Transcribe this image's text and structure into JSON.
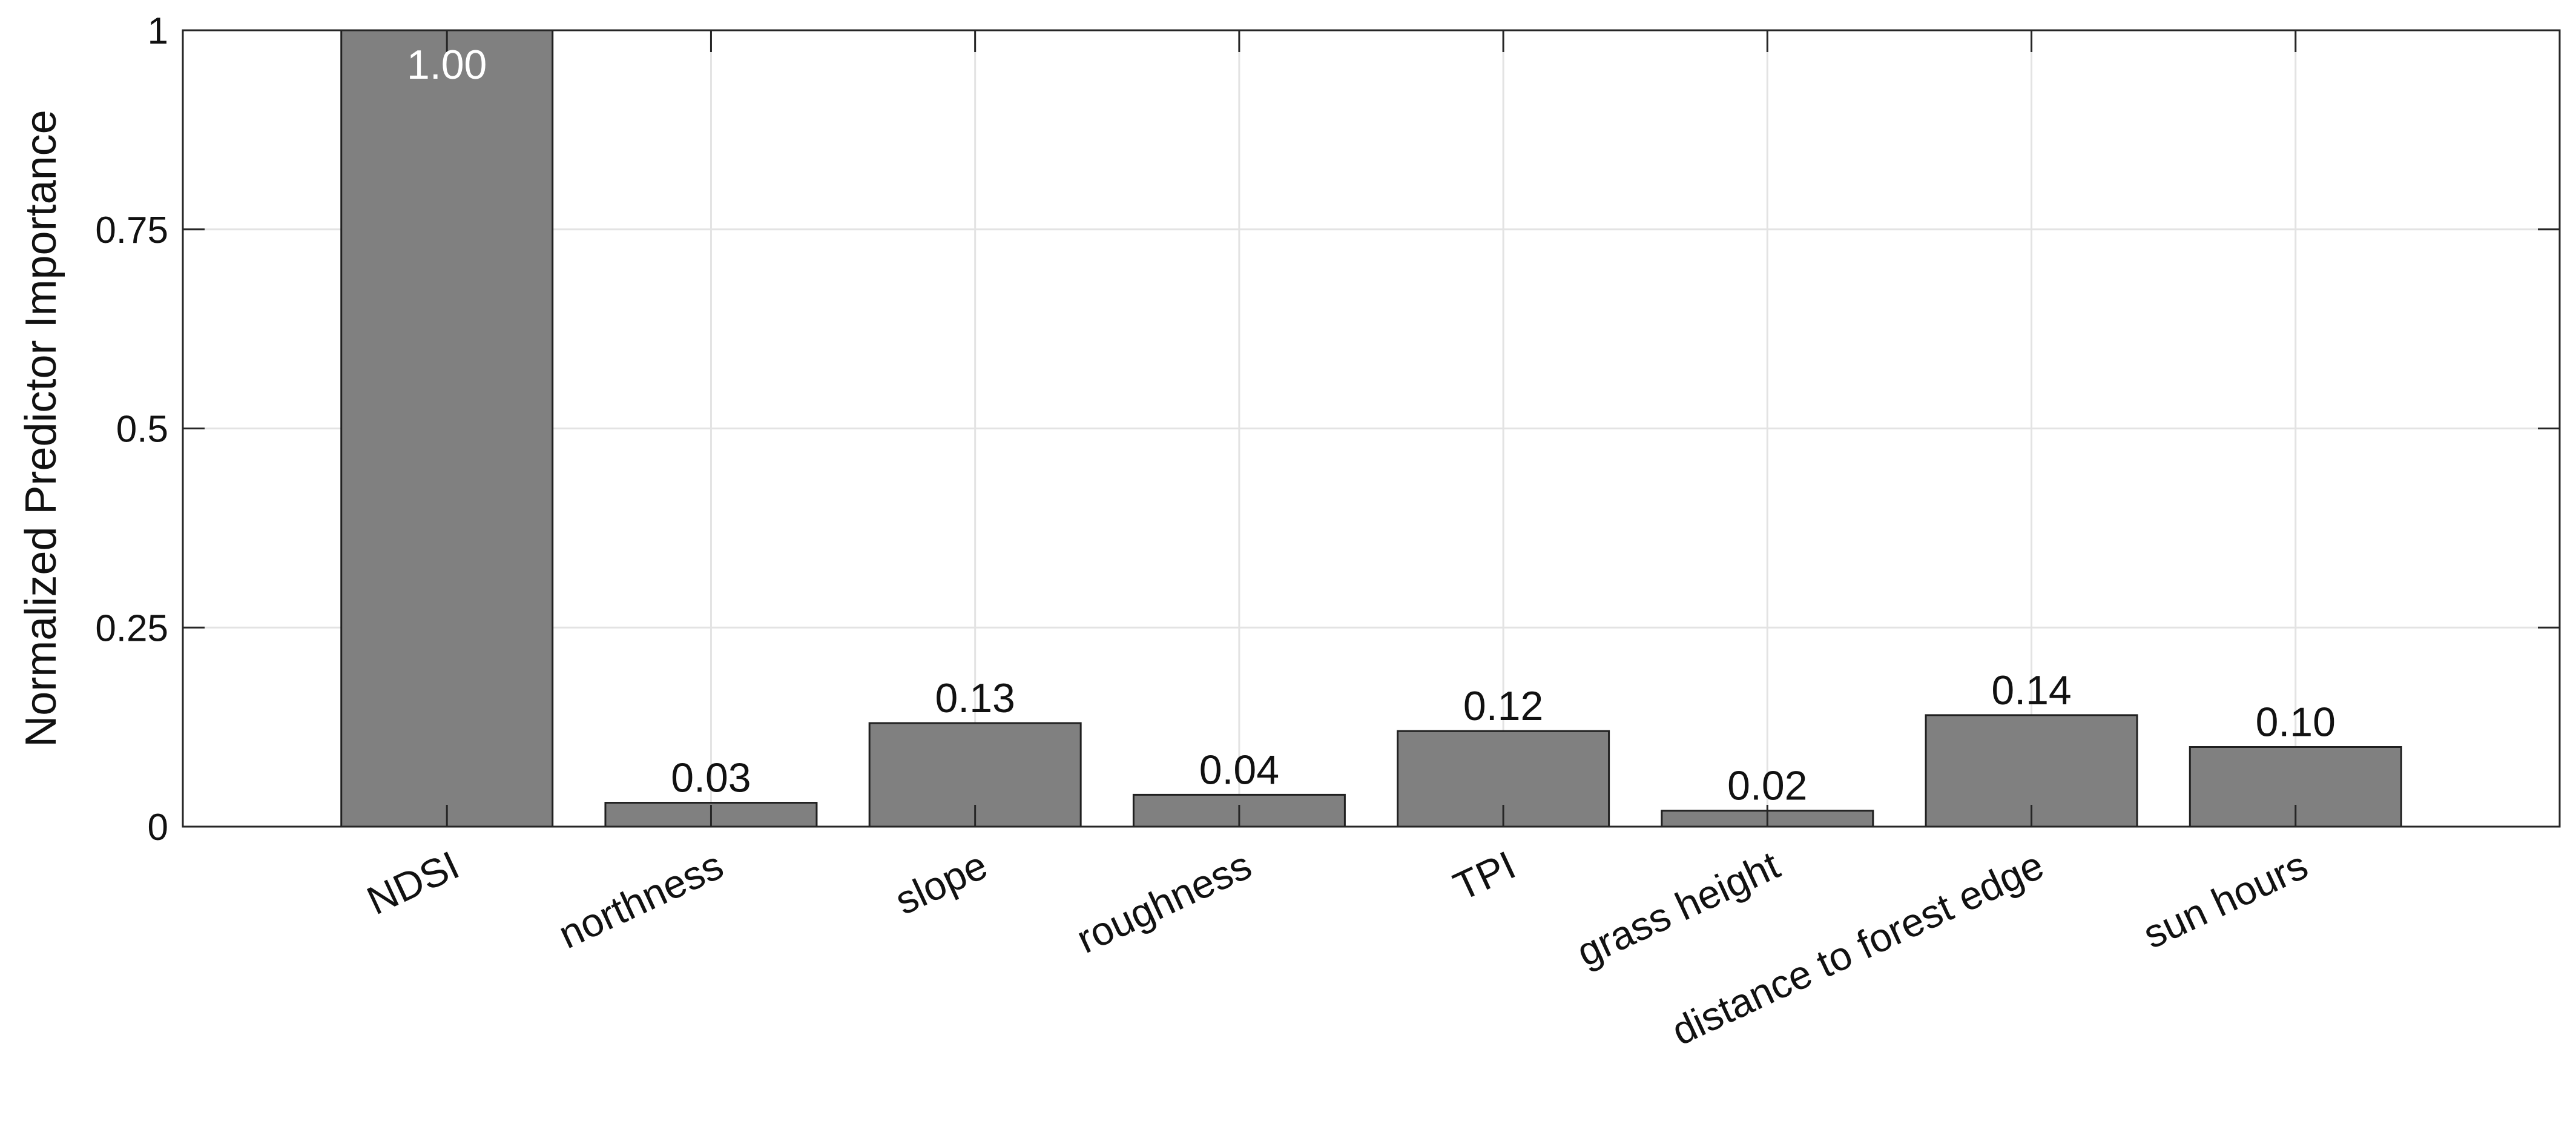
{
  "chart_data": {
    "type": "bar",
    "title": "",
    "xlabel": "",
    "ylabel": "Normalized Predictor Importance",
    "categories": [
      "NDSI",
      "northness",
      "slope",
      "roughness",
      "TPI",
      "grass height",
      "distance to forest edge",
      "sun hours"
    ],
    "values": [
      1.0,
      0.03,
      0.13,
      0.04,
      0.12,
      0.02,
      0.14,
      0.1
    ],
    "data_labels": [
      "1.00",
      "0.03",
      "0.13",
      "0.04",
      "0.12",
      "0.02",
      "0.14",
      "0.10"
    ],
    "ylim": [
      0,
      1
    ],
    "yticks": [
      0,
      0.25,
      0.5,
      0.75,
      1
    ],
    "ytick_labels": [
      "0",
      "0.25",
      "0.5",
      "0.75",
      "1"
    ],
    "grid": true,
    "colors": {
      "bar": "#808080",
      "bar_edge": "#202020",
      "grid": "#e3e3e3",
      "axis": "#262626",
      "label_inside": "#ffffff",
      "label_outside": "#111111"
    }
  }
}
